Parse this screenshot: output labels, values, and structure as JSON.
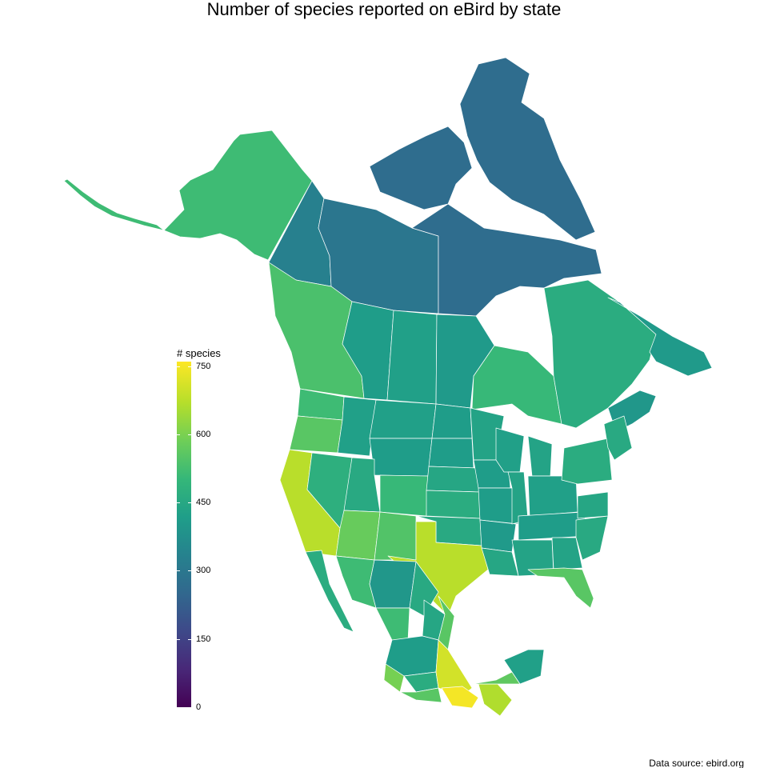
{
  "title": "Number of species reported on eBird by state",
  "source": "Data source: ebird.org",
  "legend": {
    "title": "# species",
    "min": 0,
    "max": 760,
    "ticks": [
      "0",
      "150",
      "300",
      "450",
      "600",
      "750"
    ],
    "colors": [
      "#440154",
      "#482878",
      "#3e4989",
      "#31688e",
      "#26828e",
      "#1f9e89",
      "#35b779",
      "#6ece58",
      "#b5de2b",
      "#fde725"
    ]
  },
  "colors": {
    "boundary": "#ffffff",
    "background": "#ffffff"
  },
  "map": {
    "regions": [
      {
        "name": "Alaska",
        "value": 520
      },
      {
        "name": "Yukon",
        "value": 330
      },
      {
        "name": "Northwest Territories",
        "value": 300
      },
      {
        "name": "Nunavut",
        "value": 270
      },
      {
        "name": "British Columbia",
        "value": 540
      },
      {
        "name": "Alberta",
        "value": 420
      },
      {
        "name": "Saskatchewan",
        "value": 430
      },
      {
        "name": "Manitoba",
        "value": 410
      },
      {
        "name": "Ontario",
        "value": 510
      },
      {
        "name": "Quebec",
        "value": 470
      },
      {
        "name": "Newfoundland and Labrador",
        "value": 410
      },
      {
        "name": "Washington",
        "value": 520
      },
      {
        "name": "Oregon",
        "value": 560
      },
      {
        "name": "California",
        "value": 680
      },
      {
        "name": "Nevada",
        "value": 480
      },
      {
        "name": "Arizona",
        "value": 580
      },
      {
        "name": "New Mexico",
        "value": 550
      },
      {
        "name": "Texas",
        "value": 680
      },
      {
        "name": "Colorado",
        "value": 510
      },
      {
        "name": "Florida",
        "value": 560
      },
      {
        "name": "Sonora",
        "value": 520
      },
      {
        "name": "Chihuahua",
        "value": 400
      },
      {
        "name": "Veracruz",
        "value": 710
      },
      {
        "name": "Oaxaca",
        "value": 750
      },
      {
        "name": "Chiapas",
        "value": 670
      },
      {
        "name": "Yucatan",
        "value": 430
      }
    ]
  }
}
